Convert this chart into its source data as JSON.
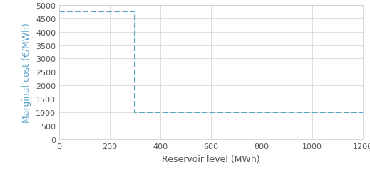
{
  "x": [
    0,
    300,
    300,
    1200
  ],
  "y": [
    4750,
    4750,
    1000,
    1000
  ],
  "line_color": "#5BA3C9",
  "line_style": "--",
  "line_width": 1.5,
  "xlabel": "Reservoir level (MWh)",
  "ylabel": "Marginal cost (€/MWh)",
  "xlim": [
    0,
    1200
  ],
  "ylim": [
    0,
    5000
  ],
  "xticks": [
    0,
    200,
    400,
    600,
    800,
    1000,
    1200
  ],
  "yticks": [
    0,
    500,
    1000,
    1500,
    2000,
    2500,
    3000,
    3500,
    4000,
    4500,
    5000
  ],
  "grid_color": "#D8D8D8",
  "background_color": "#FFFFFF",
  "xlabel_fontsize": 9,
  "ylabel_fontsize": 9,
  "tick_fontsize": 8,
  "ylabel_color": "#5BA3C9",
  "xlabel_color": "#555555",
  "tick_color": "#555555"
}
